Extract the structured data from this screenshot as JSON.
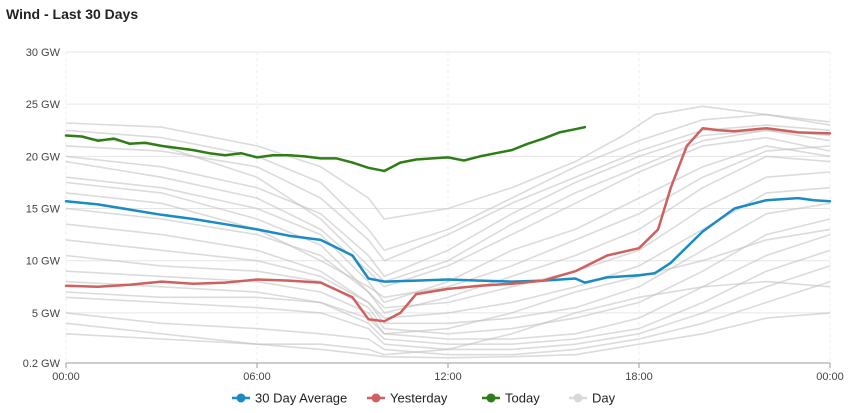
{
  "chart_data": {
    "type": "line",
    "title": "Wind - Last 30 Days",
    "y_ticks": [
      {
        "value": 30,
        "label": "30 GW"
      },
      {
        "value": 25,
        "label": "25 GW"
      },
      {
        "value": 20,
        "label": "20 GW"
      },
      {
        "value": 15,
        "label": "15 GW"
      },
      {
        "value": 10,
        "label": "10 GW"
      },
      {
        "value": 5,
        "label": "5 GW"
      },
      {
        "value": 0.2,
        "label": "0.2 GW"
      }
    ],
    "x_ticks": [
      {
        "value": 0,
        "label": "00:00"
      },
      {
        "value": 6,
        "label": "06:00"
      },
      {
        "value": 12,
        "label": "12:00"
      },
      {
        "value": 18,
        "label": "18:00"
      },
      {
        "value": 24,
        "label": "00:00"
      }
    ],
    "xlim": [
      0,
      24
    ],
    "ylim": [
      0.2,
      30
    ],
    "grid": true,
    "legend_position": "bottom",
    "series": [
      {
        "name": "30 Day Average",
        "color": "#1a8bc4",
        "width": 2.5,
        "x": [
          0,
          1,
          2,
          3,
          4,
          5,
          6,
          7,
          8,
          9,
          9.5,
          10,
          11,
          12,
          13,
          14,
          15,
          16,
          16.3,
          17,
          18,
          18.5,
          19,
          20,
          21,
          22,
          23,
          23.5,
          24
        ],
        "y": [
          15.7,
          15.4,
          14.9,
          14.4,
          14.0,
          13.5,
          13.0,
          12.4,
          12.0,
          10.5,
          8.3,
          8.0,
          8.1,
          8.2,
          8.1,
          8.0,
          8.1,
          8.3,
          7.9,
          8.4,
          8.6,
          8.8,
          9.8,
          12.8,
          15.0,
          15.8,
          16.0,
          15.8,
          15.7
        ]
      },
      {
        "name": "Yesterday",
        "color": "#d0605e",
        "width": 2.5,
        "x": [
          0,
          1,
          2,
          3,
          4,
          5,
          6,
          7,
          8,
          9,
          9.5,
          10,
          10.5,
          11,
          12,
          13,
          14,
          15,
          16,
          17,
          18,
          18.6,
          19,
          19.5,
          20,
          20.5,
          21,
          22,
          23,
          24
        ],
        "y": [
          7.6,
          7.5,
          7.7,
          8.0,
          7.8,
          7.9,
          8.2,
          8.1,
          7.9,
          6.5,
          4.4,
          4.2,
          5.0,
          6.8,
          7.3,
          7.6,
          7.8,
          8.1,
          9.0,
          10.5,
          11.2,
          13.0,
          17.0,
          21.0,
          22.7,
          22.5,
          22.4,
          22.7,
          22.3,
          22.2
        ]
      },
      {
        "name": "Today",
        "color": "#2e7d17",
        "width": 2.5,
        "x": [
          0,
          0.5,
          1,
          1.5,
          2,
          2.5,
          3,
          3.5,
          4,
          4.5,
          5,
          5.5,
          6,
          6.5,
          7,
          7.5,
          8,
          8.5,
          9,
          9.5,
          10,
          10.5,
          11,
          11.5,
          12,
          12.5,
          13,
          13.5,
          14,
          14.5,
          15,
          15.5,
          16,
          16.3
        ],
        "y": [
          22.0,
          21.9,
          21.5,
          21.7,
          21.2,
          21.3,
          21.0,
          20.8,
          20.6,
          20.3,
          20.1,
          20.3,
          19.9,
          20.1,
          20.1,
          20.0,
          19.8,
          19.8,
          19.4,
          18.9,
          18.6,
          19.4,
          19.7,
          19.8,
          19.9,
          19.6,
          20.0,
          20.3,
          20.6,
          21.2,
          21.7,
          22.3,
          22.6,
          22.8
        ]
      }
    ],
    "day_series": [
      {
        "x": [
          0,
          3,
          6,
          8,
          9.5,
          10,
          12,
          14,
          16,
          17.5,
          18.5,
          20,
          22,
          24
        ],
        "y": [
          23.2,
          22.8,
          21.0,
          19.0,
          16.0,
          14.0,
          15.0,
          17.0,
          19.5,
          22.0,
          24.0,
          24.8,
          24.0,
          23.3
        ]
      },
      {
        "x": [
          0,
          3,
          6,
          8,
          9.5,
          10,
          12,
          14,
          16,
          18,
          20,
          22,
          24
        ],
        "y": [
          22.5,
          21.8,
          20.0,
          17.5,
          13.0,
          11.0,
          13.0,
          16.0,
          19.0,
          21.5,
          23.5,
          24.0,
          23.0
        ]
      },
      {
        "x": [
          0,
          3,
          6,
          8,
          9.5,
          10,
          12,
          14,
          16,
          18,
          20,
          22,
          24
        ],
        "y": [
          21.0,
          20.5,
          19.0,
          16.0,
          12.0,
          10.0,
          12.5,
          15.5,
          18.0,
          20.5,
          22.5,
          23.0,
          22.5
        ]
      },
      {
        "x": [
          0,
          3,
          6,
          8,
          9.5,
          10,
          12,
          14,
          16,
          18,
          20,
          22,
          24
        ],
        "y": [
          20.0,
          19.0,
          17.0,
          14.5,
          10.5,
          8.5,
          11.0,
          14.5,
          17.5,
          20.0,
          22.0,
          22.5,
          21.5
        ]
      },
      {
        "x": [
          0,
          3,
          6,
          8,
          9.5,
          10,
          12,
          14,
          16,
          18,
          20,
          22,
          24
        ],
        "y": [
          19.5,
          18.0,
          16.0,
          13.0,
          9.0,
          7.5,
          9.5,
          12.5,
          15.5,
          18.5,
          21.0,
          21.8,
          20.5
        ]
      },
      {
        "x": [
          0,
          3,
          6,
          8,
          9.5,
          10,
          12,
          14,
          16,
          18,
          20,
          22,
          24
        ],
        "y": [
          18.0,
          17.0,
          15.0,
          12.5,
          8.0,
          6.0,
          8.0,
          11.0,
          13.0,
          16.0,
          19.0,
          21.0,
          20.0
        ]
      },
      {
        "x": [
          0,
          3,
          6,
          8,
          9.5,
          10,
          12,
          14,
          16,
          18,
          20,
          22,
          24
        ],
        "y": [
          17.5,
          16.5,
          14.0,
          11.5,
          7.0,
          5.0,
          6.5,
          8.5,
          10.5,
          13.0,
          17.0,
          20.0,
          19.5
        ]
      },
      {
        "x": [
          0,
          3,
          6,
          8,
          9.5,
          10,
          12,
          14,
          16,
          18,
          20,
          22,
          24
        ],
        "y": [
          15.0,
          14.0,
          12.5,
          10.5,
          7.0,
          5.5,
          6.0,
          7.5,
          9.0,
          11.0,
          15.0,
          18.0,
          18.5
        ]
      },
      {
        "x": [
          0,
          3,
          6,
          8,
          9.5,
          10,
          12,
          14,
          16,
          18,
          20,
          22,
          24
        ],
        "y": [
          13.5,
          12.5,
          11.0,
          9.0,
          6.0,
          4.5,
          5.0,
          6.0,
          7.5,
          9.5,
          13.0,
          16.5,
          17.0
        ]
      },
      {
        "x": [
          0,
          3,
          6,
          8,
          9.5,
          10,
          12,
          14,
          16,
          18,
          20,
          22,
          24
        ],
        "y": [
          12.0,
          11.0,
          10.0,
          8.5,
          6.0,
          4.0,
          4.0,
          4.5,
          5.5,
          7.5,
          11.0,
          14.5,
          15.5
        ]
      },
      {
        "x": [
          0,
          3,
          6,
          8,
          9.5,
          10,
          12,
          14,
          16,
          18,
          20,
          22,
          24
        ],
        "y": [
          10.5,
          9.5,
          9.0,
          8.0,
          5.5,
          3.5,
          3.0,
          3.5,
          4.5,
          6.0,
          9.0,
          12.5,
          14.0
        ]
      },
      {
        "x": [
          0,
          3,
          6,
          8,
          9.5,
          10,
          12,
          14,
          16,
          18,
          20,
          22,
          24
        ],
        "y": [
          9.0,
          8.5,
          8.0,
          7.0,
          5.0,
          3.0,
          2.5,
          2.5,
          3.0,
          4.5,
          7.5,
          10.5,
          12.5
        ]
      },
      {
        "x": [
          0,
          3,
          6,
          8,
          9.5,
          10,
          12,
          14,
          16,
          18,
          20,
          22,
          24
        ],
        "y": [
          8.0,
          7.5,
          7.0,
          6.0,
          4.0,
          2.5,
          2.0,
          2.0,
          2.5,
          3.5,
          6.0,
          9.0,
          11.0
        ]
      },
      {
        "x": [
          0,
          3,
          6,
          8,
          9.5,
          10,
          12,
          14,
          16,
          18,
          20,
          22,
          24
        ],
        "y": [
          6.5,
          6.0,
          5.5,
          5.0,
          3.5,
          2.0,
          1.5,
          1.5,
          2.0,
          3.0,
          5.0,
          7.5,
          9.5
        ]
      },
      {
        "x": [
          0,
          3,
          6,
          8,
          9.5,
          10,
          12,
          14,
          16,
          18,
          20,
          22,
          24
        ],
        "y": [
          5.0,
          4.0,
          3.5,
          3.0,
          2.5,
          1.5,
          1.0,
          1.0,
          1.5,
          2.5,
          4.0,
          6.0,
          8.0
        ]
      },
      {
        "x": [
          0,
          3,
          6,
          8,
          9.5,
          10,
          12,
          14,
          16,
          18,
          20,
          22,
          24
        ],
        "y": [
          4.0,
          3.0,
          2.0,
          1.5,
          1.0,
          0.8,
          0.7,
          0.8,
          1.0,
          2.0,
          3.0,
          4.5,
          5.0
        ]
      },
      {
        "x": [
          0,
          3,
          6,
          8,
          9.5,
          10,
          12,
          14,
          16,
          18,
          20,
          22,
          24
        ],
        "y": [
          22.0,
          21.0,
          18.0,
          14.0,
          9.5,
          8.0,
          10.0,
          13.5,
          16.5,
          19.0,
          21.5,
          22.5,
          22.0
        ]
      },
      {
        "x": [
          0,
          3,
          6,
          8,
          9.5,
          10,
          12,
          14,
          16,
          18,
          20,
          22,
          24
        ],
        "y": [
          16.5,
          15.5,
          13.0,
          10.0,
          7.5,
          6.5,
          7.5,
          9.5,
          12.0,
          14.5,
          18.0,
          20.5,
          21.0
        ]
      },
      {
        "x": [
          0,
          3,
          6,
          8,
          9.5,
          10,
          12,
          14,
          16,
          18,
          20,
          22,
          24
        ],
        "y": [
          7.0,
          6.5,
          6.5,
          6.0,
          4.5,
          3.0,
          3.5,
          5.0,
          7.0,
          8.5,
          10.0,
          12.0,
          13.0
        ]
      },
      {
        "x": [
          0,
          3,
          6,
          8,
          9.5,
          10,
          12,
          14,
          16,
          18,
          20,
          22,
          24
        ],
        "y": [
          3.0,
          2.5,
          2.0,
          2.0,
          1.5,
          1.0,
          1.5,
          3.0,
          5.0,
          6.5,
          7.5,
          8.0,
          7.5
        ]
      }
    ],
    "legend": [
      {
        "label": "30 Day Average",
        "color": "#1a8bc4"
      },
      {
        "label": "Yesterday",
        "color": "#d0605e"
      },
      {
        "label": "Today",
        "color": "#2e7d17"
      },
      {
        "label": "Day",
        "color": "#d9d9d9"
      }
    ]
  }
}
